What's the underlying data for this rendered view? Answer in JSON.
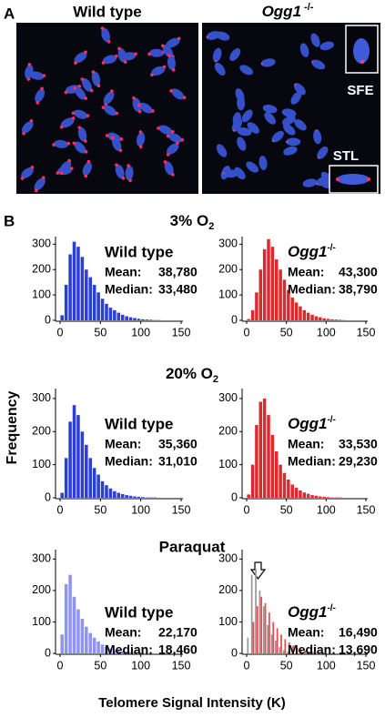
{
  "panel_a": {
    "label": "A",
    "left_title": "Wild type",
    "right_title": "Ogg1",
    "right_title_sup": "-/-",
    "insets": [
      "SFE",
      "STL"
    ]
  },
  "panel_b": {
    "label": "B",
    "rows": [
      {
        "text": "3% O",
        "sub": "2"
      },
      {
        "text": "20% O",
        "sub": "2"
      },
      {
        "text": "Paraquat"
      }
    ],
    "y_label": "Frequency",
    "x_label": "Telomere Signal Intensity (K)"
  },
  "chart_data": [
    {
      "type": "histogram",
      "title": "Wild type",
      "stats": [
        {
          "label": "Mean:",
          "value": "38,780"
        },
        {
          "label": "Median:",
          "value": "33,480"
        }
      ],
      "bins": [
        0,
        5,
        10,
        15,
        20,
        25,
        30,
        35,
        40,
        45,
        50,
        55,
        60,
        65,
        70,
        75,
        80,
        85,
        90,
        95,
        100,
        105,
        110,
        115,
        120,
        125
      ],
      "values": [
        20,
        140,
        260,
        310,
        290,
        250,
        200,
        170,
        140,
        110,
        85,
        65,
        50,
        40,
        30,
        22,
        16,
        12,
        9,
        6,
        4,
        3,
        2,
        1,
        1
      ],
      "color": "#2b3fd6",
      "xlim": [
        0,
        150
      ],
      "ylim": [
        0,
        330
      ],
      "xticks": [
        0,
        50,
        100,
        150
      ],
      "yticks": [
        0,
        100,
        200,
        300
      ]
    },
    {
      "type": "histogram",
      "title": "Ogg1",
      "title_sup": "-/-",
      "stats": [
        {
          "label": "Mean:",
          "value": "43,300"
        },
        {
          "label": "Median:",
          "value": "38,790"
        }
      ],
      "bins": [
        0,
        5,
        10,
        15,
        20,
        25,
        30,
        35,
        40,
        45,
        50,
        55,
        60,
        65,
        70,
        75,
        80,
        85,
        90,
        95,
        100,
        105,
        110,
        115,
        120,
        125
      ],
      "values": [
        5,
        40,
        110,
        200,
        280,
        320,
        290,
        240,
        200,
        160,
        120,
        90,
        70,
        55,
        40,
        30,
        22,
        16,
        12,
        8,
        6,
        4,
        3,
        2,
        1
      ],
      "color": "#e0282c",
      "xlim": [
        0,
        150
      ],
      "ylim": [
        0,
        330
      ],
      "xticks": [
        0,
        50,
        100,
        150
      ],
      "yticks": [
        0,
        100,
        200,
        300
      ]
    },
    {
      "type": "histogram",
      "title": "Wild type",
      "stats": [
        {
          "label": "Mean:",
          "value": "35,360"
        },
        {
          "label": "Median:",
          "value": "31,010"
        }
      ],
      "bins": [
        0,
        5,
        10,
        15,
        20,
        25,
        30,
        35,
        40,
        45,
        50,
        55,
        60,
        65,
        70,
        75,
        80,
        85,
        90,
        95,
        100,
        105,
        110,
        115,
        120,
        125
      ],
      "values": [
        15,
        120,
        230,
        280,
        250,
        200,
        160,
        120,
        90,
        70,
        50,
        38,
        28,
        20,
        15,
        11,
        8,
        6,
        4,
        3,
        2,
        1,
        1,
        1,
        0
      ],
      "color": "#2b3fd6",
      "xlim": [
        0,
        150
      ],
      "ylim": [
        0,
        330
      ],
      "xticks": [
        0,
        50,
        100,
        150
      ],
      "yticks": [
        0,
        100,
        200,
        300
      ]
    },
    {
      "type": "histogram",
      "title": "Ogg1",
      "title_sup": "-/-",
      "stats": [
        {
          "label": "Mean:",
          "value": "33,530"
        },
        {
          "label": "Median:",
          "value": "29,230"
        }
      ],
      "bins": [
        0,
        5,
        10,
        15,
        20,
        25,
        30,
        35,
        40,
        45,
        50,
        55,
        60,
        65,
        70,
        75,
        80,
        85,
        90,
        95,
        100,
        105,
        110,
        115,
        120,
        125
      ],
      "values": [
        10,
        100,
        220,
        290,
        300,
        250,
        190,
        140,
        100,
        75,
        55,
        40,
        30,
        22,
        16,
        12,
        8,
        6,
        4,
        3,
        2,
        1,
        1,
        1,
        0
      ],
      "color": "#e0282c",
      "xlim": [
        0,
        150
      ],
      "ylim": [
        0,
        330
      ],
      "xticks": [
        0,
        50,
        100,
        150
      ],
      "yticks": [
        0,
        100,
        200,
        300
      ]
    },
    {
      "type": "histogram",
      "title": "Wild type",
      "stats": [
        {
          "label": "Mean:",
          "value": "22,170"
        },
        {
          "label": "Median:",
          "value": "18,460"
        }
      ],
      "bins": [
        0,
        5,
        10,
        15,
        20,
        25,
        30,
        35,
        40,
        45,
        50,
        55,
        60,
        65,
        70,
        75,
        80,
        85,
        90,
        95,
        100,
        105,
        110,
        115,
        120,
        125
      ],
      "values": [
        60,
        220,
        250,
        180,
        140,
        110,
        85,
        65,
        50,
        38,
        28,
        20,
        15,
        11,
        8,
        6,
        5,
        4,
        3,
        2,
        1,
        1,
        1,
        0,
        0
      ],
      "color": "#8e94f0",
      "xlim": [
        0,
        150
      ],
      "ylim": [
        0,
        330
      ],
      "xticks": [
        0,
        50,
        100,
        150
      ],
      "yticks": [
        0,
        100,
        200,
        300
      ]
    },
    {
      "type": "histogram",
      "title": "Ogg1",
      "title_sup": "-/-",
      "stats": [
        {
          "label": "Mean:",
          "value": "16,490"
        },
        {
          "label": "Median:",
          "value": "13,690"
        }
      ],
      "bins": [
        0,
        5,
        10,
        15,
        20,
        25,
        30,
        35,
        40,
        45,
        50,
        55,
        60,
        65,
        70,
        75,
        80,
        85,
        90,
        95,
        100,
        105,
        110,
        115,
        120,
        125
      ],
      "series": [
        {
          "color": "#9a9a9a",
          "values": [
            50,
            250,
            270,
            200,
            150,
            90,
            60,
            40,
            20,
            10,
            5,
            0,
            0,
            0,
            0,
            0,
            0,
            0,
            0,
            0,
            0,
            0,
            0,
            0,
            0
          ]
        },
        {
          "color": "#ee4a4e",
          "values": [
            0,
            100,
            150,
            180,
            160,
            130,
            100,
            80,
            60,
            45,
            35,
            25,
            18,
            12,
            9,
            6,
            4,
            3,
            2,
            1,
            1,
            1,
            0,
            0,
            0
          ]
        }
      ],
      "xlim": [
        0,
        150
      ],
      "ylim": [
        0,
        330
      ],
      "xticks": [
        0,
        50,
        100,
        150
      ],
      "yticks": [
        0,
        100,
        200,
        300
      ]
    }
  ]
}
